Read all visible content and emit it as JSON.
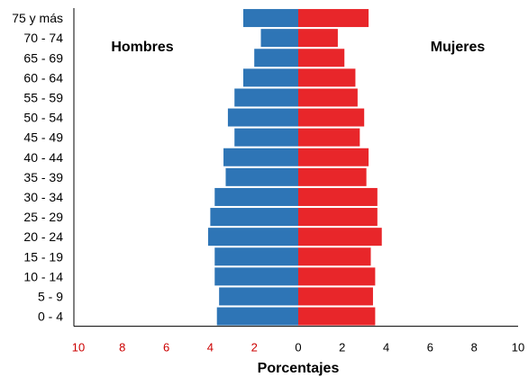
{
  "chart_data": {
    "type": "bar",
    "orientation": "horizontal-pyramid",
    "categories": [
      "0 - 4",
      "5 - 9",
      "10 - 14",
      "15 - 19",
      "20 - 24",
      "25 - 29",
      "30 - 34",
      "35 - 39",
      "40 - 44",
      "45 - 49",
      "50 - 54",
      "55 - 59",
      "60 - 64",
      "65 - 69",
      "70 - 74",
      "75 y más"
    ],
    "series": [
      {
        "name": "Hombres",
        "color": "#2e75b6",
        "values": [
          3.7,
          3.6,
          3.8,
          3.8,
          4.1,
          4.0,
          3.8,
          3.3,
          3.4,
          2.9,
          3.2,
          2.9,
          2.5,
          2.0,
          1.7,
          2.5
        ]
      },
      {
        "name": "Mujeres",
        "color": "#e8262a",
        "values": [
          3.5,
          3.4,
          3.5,
          3.3,
          3.8,
          3.6,
          3.6,
          3.1,
          3.2,
          2.8,
          3.0,
          2.7,
          2.6,
          2.1,
          1.8,
          3.2
        ]
      }
    ],
    "xticks": [
      "10",
      "8",
      "6",
      "4",
      "2",
      "0",
      "2",
      "4",
      "6",
      "8",
      "10"
    ],
    "xlim": [
      -10,
      10
    ],
    "xlabel": "Porcentajes",
    "grid": false
  }
}
